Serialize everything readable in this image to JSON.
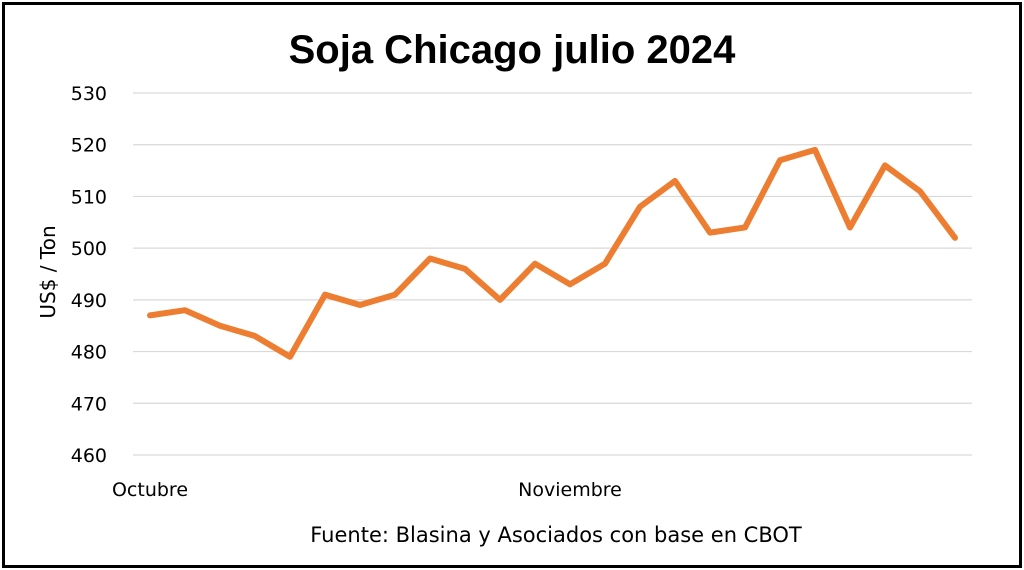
{
  "chart_data": {
    "type": "line",
    "title": "Soja Chicago julio 2024",
    "xlabel": "",
    "ylabel": "US$ / Ton",
    "ylim": [
      460,
      530
    ],
    "yticks": [
      460,
      470,
      480,
      490,
      500,
      510,
      520,
      530
    ],
    "x_tick_labels": [
      "Octubre",
      "Noviembre"
    ],
    "x_tick_label_indices": [
      0,
      12
    ],
    "grid": true,
    "legend": "none",
    "series": [
      {
        "color": "#ed7d31",
        "values": [
          487,
          488,
          485,
          483,
          479,
          491,
          489,
          491,
          498,
          496,
          490,
          497,
          493,
          497,
          508,
          513,
          503,
          504,
          517,
          519,
          504,
          516,
          511,
          502
        ]
      }
    ],
    "source": "Fuente: Blasina y Asociados con base en CBOT"
  }
}
